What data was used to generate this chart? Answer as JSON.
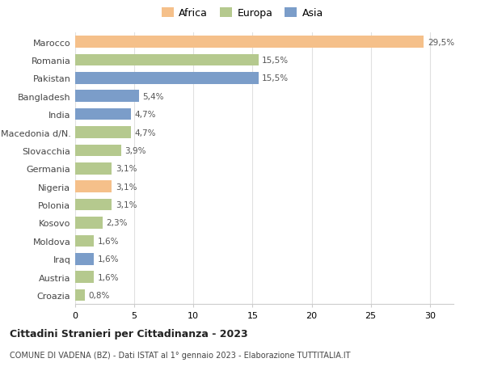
{
  "categories": [
    "Marocco",
    "Romania",
    "Pakistan",
    "Bangladesh",
    "India",
    "Macedonia d/N.",
    "Slovacchia",
    "Germania",
    "Nigeria",
    "Polonia",
    "Kosovo",
    "Moldova",
    "Iraq",
    "Austria",
    "Croazia"
  ],
  "values": [
    29.5,
    15.5,
    15.5,
    5.4,
    4.7,
    4.7,
    3.9,
    3.1,
    3.1,
    3.1,
    2.3,
    1.6,
    1.6,
    1.6,
    0.8
  ],
  "labels": [
    "29,5%",
    "15,5%",
    "15,5%",
    "5,4%",
    "4,7%",
    "4,7%",
    "3,9%",
    "3,1%",
    "3,1%",
    "3,1%",
    "2,3%",
    "1,6%",
    "1,6%",
    "1,6%",
    "0,8%"
  ],
  "continents": [
    "Africa",
    "Europa",
    "Asia",
    "Asia",
    "Asia",
    "Europa",
    "Europa",
    "Europa",
    "Africa",
    "Europa",
    "Europa",
    "Europa",
    "Asia",
    "Europa",
    "Europa"
  ],
  "colors": {
    "Africa": "#F5C08A",
    "Europa": "#B5C98E",
    "Asia": "#7B9DC9"
  },
  "title": "Cittadini Stranieri per Cittadinanza - 2023",
  "subtitle": "COMUNE DI VADENA (BZ) - Dati ISTAT al 1° gennaio 2023 - Elaborazione TUTTITALIA.IT",
  "xlim": [
    0,
    32
  ],
  "xticks": [
    0,
    5,
    10,
    15,
    20,
    25,
    30
  ],
  "legend_order": [
    "Africa",
    "Europa",
    "Asia"
  ],
  "background_color": "#ffffff",
  "grid_color": "#e0e0e0"
}
